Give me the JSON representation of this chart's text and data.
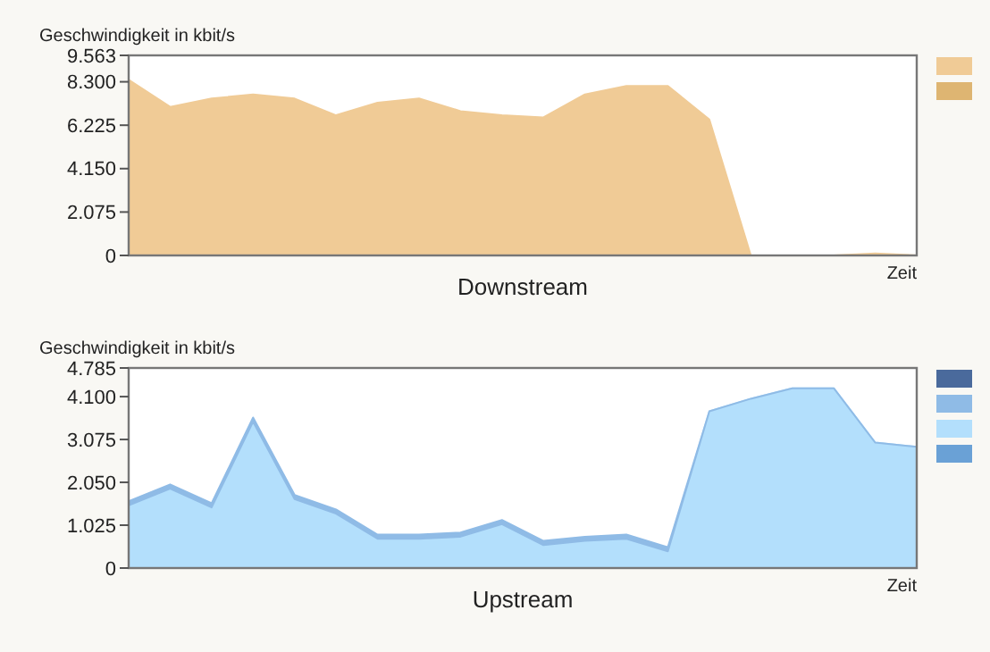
{
  "chart_data": [
    {
      "type": "area",
      "title": "Downstream",
      "ylabel": "Geschwindigkeit in kbit/s",
      "xlabel": "Zeit",
      "stacked": true,
      "grid": false,
      "categories": [
        null,
        null,
        null,
        null,
        null,
        null,
        null,
        null,
        null,
        null,
        null,
        null,
        null,
        null,
        null,
        null,
        null,
        null,
        null,
        null
      ],
      "ylim": [
        0,
        9563
      ],
      "yticks": [
        0,
        {
          "value": 2075,
          "label": "2.075"
        },
        {
          "value": 4150,
          "label": "4.150"
        },
        {
          "value": 6225,
          "label": "6.225"
        },
        {
          "value": 8300,
          "label": "8.300"
        },
        {
          "value": 9563,
          "label": "9.563"
        }
      ],
      "series": [
        {
          "color": "#f0cb96",
          "values": [
            8400,
            7100,
            7500,
            7700,
            7500,
            6700,
            7300,
            7500,
            6900,
            6700,
            6600,
            7700,
            8100,
            8100,
            6500,
            0,
            0,
            0,
            100,
            0
          ]
        }
      ]
    },
    {
      "type": "area",
      "title": "Upstream",
      "ylabel": "Geschwindigkeit in kbit/s",
      "xlabel": "Zeit",
      "stacked": true,
      "grid": false,
      "categories": [
        null,
        null,
        null,
        null,
        null,
        null,
        null,
        null,
        null,
        null,
        null,
        null,
        null,
        null,
        null,
        null,
        null,
        null,
        null,
        null
      ],
      "ylim": [
        0,
        4785
      ],
      "yticks": [
        0,
        {
          "value": 1025,
          "label": "1.025"
        },
        {
          "value": 2050,
          "label": "2.050"
        },
        {
          "value": 3075,
          "label": "3.075"
        },
        {
          "value": 4100,
          "label": "4.100"
        },
        {
          "value": 4785,
          "label": "4.785"
        }
      ],
      "series": [
        {
          "color": "#b3dffc",
          "values": [
            1500,
            1900,
            1450,
            3500,
            1650,
            1300,
            700,
            700,
            750,
            1050,
            550,
            650,
            700,
            400,
            3750,
            4050,
            4300,
            4300,
            3000,
            2900
          ]
        },
        {
          "color": "#8fbbe6",
          "values": [
            100,
            100,
            100,
            100,
            100,
            100,
            100,
            100,
            100,
            100,
            100,
            100,
            100,
            100,
            0,
            0,
            0,
            0,
            0,
            0
          ]
        }
      ]
    }
  ]
}
